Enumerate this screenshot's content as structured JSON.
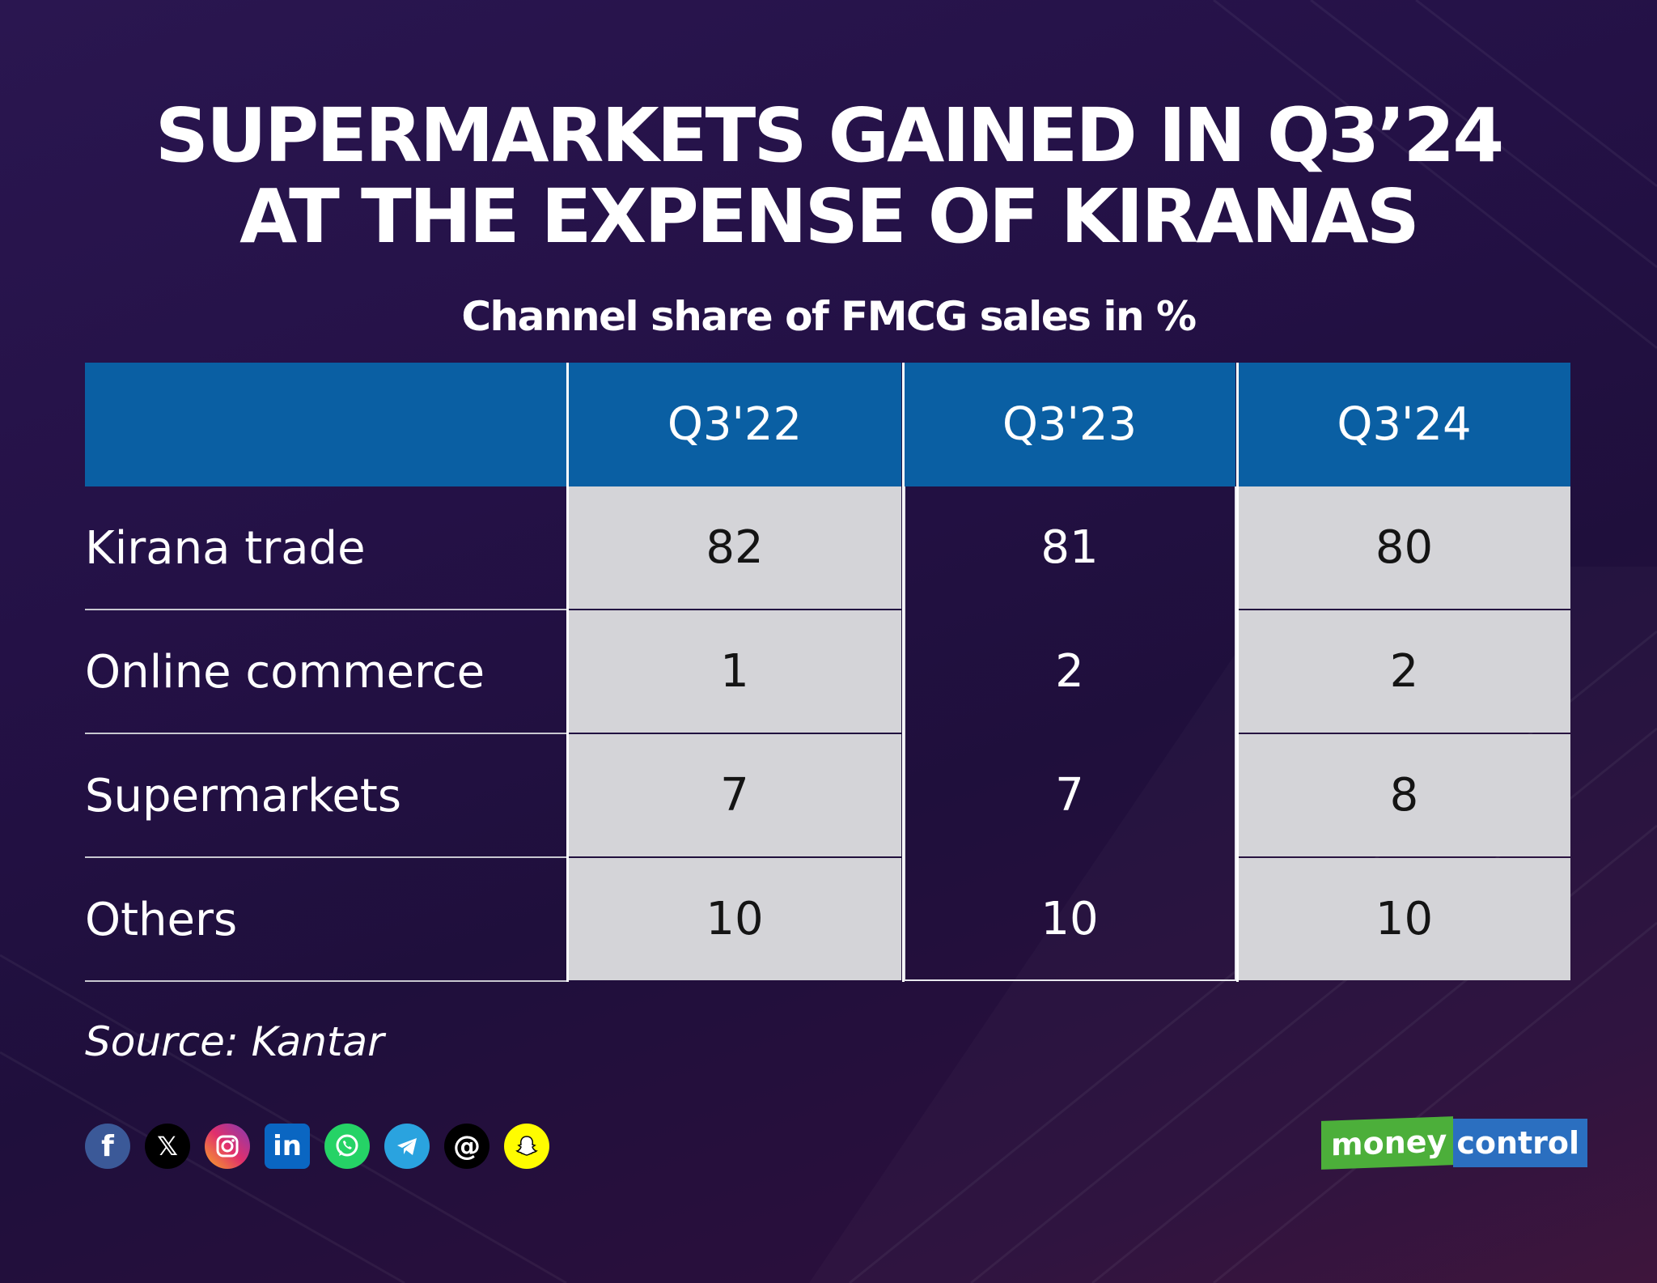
{
  "title_line1": "SUPERMARKETS GAINED IN Q3’24",
  "title_line2": "AT THE EXPENSE OF KIRANAS",
  "subtitle": "Channel share of FMCG sales in %",
  "source": "Source: Kantar",
  "brand": {
    "part1": "money",
    "part2": "control"
  },
  "social_icons": [
    "facebook-icon",
    "x-icon",
    "instagram-icon",
    "linkedin-icon",
    "whatsapp-icon",
    "telegram-icon",
    "threads-icon",
    "snapchat-icon"
  ],
  "colors": {
    "header": "#0a5fa3",
    "light_cell": "#d4d4d8",
    "background": "#241146"
  },
  "chart_data": {
    "type": "table",
    "title": "SUPERMARKETS GAINED IN Q3’24 AT THE EXPENSE OF KIRANAS",
    "subtitle": "Channel share of FMCG sales in %",
    "columns": [
      "Q3'22",
      "Q3'23",
      "Q3'24"
    ],
    "rows": [
      {
        "label": "Kirana trade",
        "values": [
          "82",
          "81",
          "80"
        ]
      },
      {
        "label": "Online commerce",
        "values": [
          "1",
          "2",
          "2"
        ]
      },
      {
        "label": "Supermarkets",
        "values": [
          "7",
          "7",
          "8"
        ]
      },
      {
        "label": "Others",
        "values": [
          "10",
          "10",
          "10"
        ]
      }
    ]
  }
}
